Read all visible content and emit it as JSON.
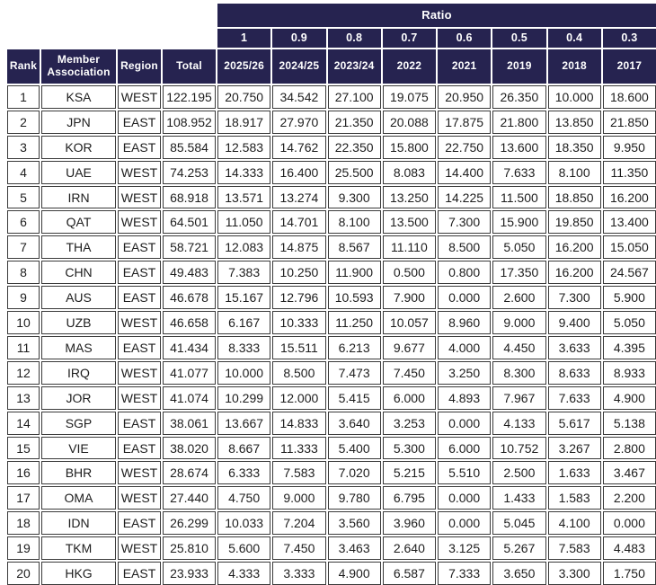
{
  "chart_data": {
    "type": "table",
    "ratio": {
      "label": "Ratio",
      "values": [
        "1",
        "0.9",
        "0.8",
        "0.7",
        "0.6",
        "0.5",
        "0.4",
        "0.3"
      ]
    },
    "columns": [
      "Rank",
      "Member Association",
      "Region",
      "Total",
      "2025/26",
      "2024/25",
      "2023/24",
      "2022",
      "2021",
      "2019",
      "2018",
      "2017"
    ],
    "rows": [
      {
        "rank": "1",
        "member": "KSA",
        "region": "WEST",
        "total": "122.195",
        "values": [
          "20.750",
          "34.542",
          "27.100",
          "19.075",
          "20.950",
          "26.350",
          "10.000",
          "18.600"
        ]
      },
      {
        "rank": "2",
        "member": "JPN",
        "region": "EAST",
        "total": "108.952",
        "values": [
          "18.917",
          "27.970",
          "21.350",
          "20.088",
          "17.875",
          "21.800",
          "13.850",
          "21.850"
        ]
      },
      {
        "rank": "3",
        "member": "KOR",
        "region": "EAST",
        "total": "85.584",
        "values": [
          "12.583",
          "14.762",
          "22.350",
          "15.800",
          "22.750",
          "13.600",
          "18.350",
          "9.950"
        ]
      },
      {
        "rank": "4",
        "member": "UAE",
        "region": "WEST",
        "total": "74.253",
        "values": [
          "14.333",
          "16.400",
          "25.500",
          "8.083",
          "14.400",
          "7.633",
          "8.100",
          "11.350"
        ]
      },
      {
        "rank": "5",
        "member": "IRN",
        "region": "WEST",
        "total": "68.918",
        "values": [
          "13.571",
          "13.274",
          "9.300",
          "13.250",
          "14.225",
          "11.500",
          "18.850",
          "16.200"
        ]
      },
      {
        "rank": "6",
        "member": "QAT",
        "region": "WEST",
        "total": "64.501",
        "values": [
          "11.050",
          "14.701",
          "8.100",
          "13.500",
          "7.300",
          "15.900",
          "19.850",
          "13.400"
        ]
      },
      {
        "rank": "7",
        "member": "THA",
        "region": "EAST",
        "total": "58.721",
        "values": [
          "12.083",
          "14.875",
          "8.567",
          "11.110",
          "8.500",
          "5.050",
          "16.200",
          "15.050"
        ]
      },
      {
        "rank": "8",
        "member": "CHN",
        "region": "EAST",
        "total": "49.483",
        "values": [
          "7.383",
          "10.250",
          "11.900",
          "0.500",
          "0.800",
          "17.350",
          "16.200",
          "24.567"
        ]
      },
      {
        "rank": "9",
        "member": "AUS",
        "region": "EAST",
        "total": "46.678",
        "values": [
          "15.167",
          "12.796",
          "10.593",
          "7.900",
          "0.000",
          "2.600",
          "7.300",
          "5.900"
        ]
      },
      {
        "rank": "10",
        "member": "UZB",
        "region": "WEST",
        "total": "46.658",
        "values": [
          "6.167",
          "10.333",
          "11.250",
          "10.057",
          "8.960",
          "9.000",
          "9.400",
          "5.050"
        ]
      },
      {
        "rank": "11",
        "member": "MAS",
        "region": "EAST",
        "total": "41.434",
        "values": [
          "8.333",
          "15.511",
          "6.213",
          "9.677",
          "4.000",
          "4.450",
          "3.633",
          "4.395"
        ]
      },
      {
        "rank": "12",
        "member": "IRQ",
        "region": "WEST",
        "total": "41.077",
        "values": [
          "10.000",
          "8.500",
          "7.473",
          "7.450",
          "3.250",
          "8.300",
          "8.633",
          "8.933"
        ]
      },
      {
        "rank": "13",
        "member": "JOR",
        "region": "WEST",
        "total": "41.074",
        "values": [
          "10.299",
          "12.000",
          "5.415",
          "6.000",
          "4.893",
          "7.967",
          "7.633",
          "4.900"
        ]
      },
      {
        "rank": "14",
        "member": "SGP",
        "region": "EAST",
        "total": "38.061",
        "values": [
          "13.667",
          "14.833",
          "3.640",
          "3.253",
          "0.000",
          "4.133",
          "5.617",
          "5.138"
        ]
      },
      {
        "rank": "15",
        "member": "VIE",
        "region": "EAST",
        "total": "38.020",
        "values": [
          "8.667",
          "11.333",
          "5.400",
          "5.300",
          "6.000",
          "10.752",
          "3.267",
          "2.800"
        ]
      },
      {
        "rank": "16",
        "member": "BHR",
        "region": "WEST",
        "total": "28.674",
        "values": [
          "6.333",
          "7.583",
          "7.020",
          "5.215",
          "5.510",
          "2.500",
          "1.633",
          "3.467"
        ]
      },
      {
        "rank": "17",
        "member": "OMA",
        "region": "WEST",
        "total": "27.440",
        "values": [
          "4.750",
          "9.000",
          "9.780",
          "6.795",
          "0.000",
          "1.433",
          "1.583",
          "2.200"
        ]
      },
      {
        "rank": "18",
        "member": "IDN",
        "region": "EAST",
        "total": "26.299",
        "values": [
          "10.033",
          "7.204",
          "3.560",
          "3.960",
          "0.000",
          "5.045",
          "4.100",
          "0.000"
        ]
      },
      {
        "rank": "19",
        "member": "TKM",
        "region": "WEST",
        "total": "25.810",
        "values": [
          "5.600",
          "7.450",
          "3.463",
          "2.640",
          "3.125",
          "5.267",
          "7.583",
          "4.483"
        ]
      },
      {
        "rank": "20",
        "member": "HKG",
        "region": "EAST",
        "total": "23.933",
        "values": [
          "4.333",
          "3.333",
          "4.900",
          "6.587",
          "7.333",
          "3.650",
          "3.300",
          "1.750"
        ]
      }
    ]
  },
  "colors": {
    "header_bg": "#262350",
    "header_text": "#ffffff",
    "cell_bg": "#ffffff",
    "cell_text": "#1d1d1d",
    "cell_border": "#3a3a3a",
    "page_bg": "#ffffff"
  }
}
